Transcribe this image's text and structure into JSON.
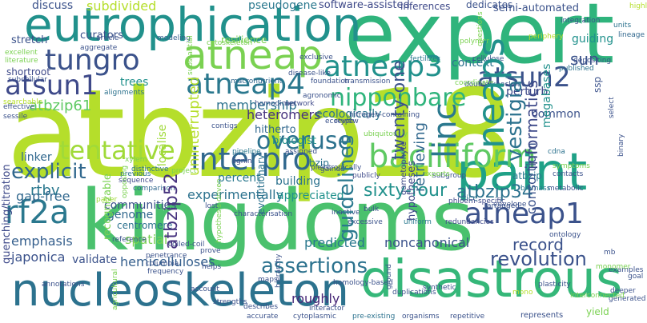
{
  "title": "",
  "words": [
    {
      "text": "atbzip18",
      "color": "#b5de2b"
    },
    {
      "text": "kingdoms",
      "color": "#4ac16d"
    },
    {
      "text": "expert",
      "color": "#2fb47c"
    },
    {
      "text": "eutrophication",
      "color": "#21918c"
    },
    {
      "text": "paint",
      "color": "#1fa187"
    },
    {
      "text": "disastrous",
      "color": "#35b779"
    },
    {
      "text": "nucleoskeleton",
      "color": "#2c728e"
    },
    {
      "text": "atneap",
      "color": "#7ad151"
    },
    {
      "text": "atneap3",
      "color": "#21918c"
    },
    {
      "text": "atneap4",
      "color": "#2a788e"
    },
    {
      "text": "atneap1",
      "color": "#3b528b"
    },
    {
      "text": "tungro",
      "color": "#3b528b"
    },
    {
      "text": "atsun1",
      "color": "#3e4989"
    },
    {
      "text": "atsun2",
      "color": "#3b528b"
    },
    {
      "text": "bacilliform",
      "color": "#5ec962"
    },
    {
      "text": "interpro",
      "color": "#31688e"
    },
    {
      "text": "tentative",
      "color": "#a0da39"
    },
    {
      "text": "overuse",
      "color": "#2c728e"
    },
    {
      "text": "rf2a",
      "color": "#2a788e"
    },
    {
      "text": "neaps",
      "color": "#21918c"
    },
    {
      "text": "linc",
      "color": "#2a788e"
    },
    {
      "text": "nipponbare",
      "color": "#2fb47c"
    },
    {
      "text": "vestigial",
      "color": "#2c728e"
    },
    {
      "text": "revolution",
      "color": "#3b528b"
    },
    {
      "text": "explicit",
      "color": "#31688e"
    },
    {
      "text": "assertions",
      "color": "#2c728e"
    },
    {
      "text": "sixty-four",
      "color": "#21918c"
    },
    {
      "text": "atbzip34",
      "color": "#2c728e"
    },
    {
      "text": "atbzip61",
      "color": "#5ec962"
    },
    {
      "text": "atbzip52",
      "color": "#46327e"
    },
    {
      "text": "atbzip",
      "color": "#2a788e"
    },
    {
      "text": "guidelines",
      "color": "#2a788e"
    },
    {
      "text": "twenty-one",
      "color": "#3b528b"
    },
    {
      "text": "uninterrupted",
      "color": "#b5de2b"
    },
    {
      "text": "membership",
      "color": "#2c728e"
    },
    {
      "text": "heteromers",
      "color": "#46327e"
    },
    {
      "text": "ecologically",
      "color": "#2c728e"
    },
    {
      "text": "retrieving",
      "color": "#31688e"
    },
    {
      "text": "informatics",
      "color": "#3e4989"
    },
    {
      "text": "megabases",
      "color": "#21918c"
    },
    {
      "text": "consortium",
      "color": "#3b528b"
    },
    {
      "text": "hemicelluloses",
      "color": "#355f8d"
    },
    {
      "text": "predicted",
      "color": "#2a788e"
    },
    {
      "text": "noncanonical",
      "color": "#3b528b"
    },
    {
      "text": "roughly",
      "color": "#482878"
    },
    {
      "text": "experimentally",
      "color": "#2c728e"
    },
    {
      "text": "appreciated",
      "color": "#21918c"
    },
    {
      "text": "record",
      "color": "#3b528b"
    },
    {
      "text": "percent",
      "color": "#2a788e"
    },
    {
      "text": "building",
      "color": "#2c728e"
    },
    {
      "text": "rtbv",
      "color": "#2a788e"
    },
    {
      "text": "gap-free",
      "color": "#31688e"
    },
    {
      "text": "linker",
      "color": "#31688e"
    },
    {
      "text": "japonica",
      "color": "#3b528b"
    },
    {
      "text": "emphasis",
      "color": "#355f8d"
    },
    {
      "text": "validate",
      "color": "#3b528b"
    },
    {
      "text": "genome",
      "color": "#31688e"
    },
    {
      "text": "centromere",
      "color": "#2c728e"
    },
    {
      "text": "communities",
      "color": "#3b528b"
    },
    {
      "text": "spatial",
      "color": "#7ad151"
    },
    {
      "text": "sun",
      "color": "#3b528b"
    },
    {
      "text": "context",
      "color": "#2c728e"
    },
    {
      "text": "perturb",
      "color": "#3e4989"
    },
    {
      "text": "common",
      "color": "#3b528b"
    },
    {
      "text": "guiding",
      "color": "#21918c"
    },
    {
      "text": "subdivided",
      "color": "#b5de2b"
    },
    {
      "text": "pseudogene",
      "color": "#2a788e"
    },
    {
      "text": "software-assisted",
      "color": "#3e4989"
    },
    {
      "text": "semi-automated",
      "color": "#3b528b"
    },
    {
      "text": "inferences",
      "color": "#3e4989"
    },
    {
      "text": "dedicates",
      "color": "#3b528b"
    },
    {
      "text": "discuss",
      "color": "#3b528b"
    },
    {
      "text": "curators",
      "color": "#3b528b"
    },
    {
      "text": "stretch",
      "color": "#3b528b"
    },
    {
      "text": "shortroot",
      "color": "#3e4989"
    },
    {
      "text": "trees",
      "color": "#21918c"
    },
    {
      "text": "resilience",
      "color": "#7ad151"
    },
    {
      "text": "localise",
      "color": "#a0da39"
    },
    {
      "text": "hitherto",
      "color": "#31688e"
    },
    {
      "text": "biologist",
      "color": "#21918c"
    },
    {
      "text": "evolutionary",
      "color": "#2c728e"
    },
    {
      "text": "bzip",
      "color": "#2c728e"
    },
    {
      "text": "hypotheses",
      "color": "#3e4989"
    },
    {
      "text": "quenching/titration",
      "color": "#3e4989"
    },
    {
      "text": "recognizable",
      "color": "#7ad151"
    },
    {
      "text": "modeling",
      "color": "#355f8d"
    },
    {
      "text": "macronutrient",
      "color": "#31688e"
    },
    {
      "text": "exclusive",
      "color": "#3b528b"
    },
    {
      "text": "foundation",
      "color": "#3b528b"
    },
    {
      "text": "transmission",
      "color": "#3b528b"
    },
    {
      "text": "fertilizer",
      "color": "#2a788e"
    },
    {
      "text": "cellulose",
      "color": "#3b528b"
    },
    {
      "text": "integration",
      "color": "#3b528b"
    },
    {
      "text": "published",
      "color": "#2c728e"
    },
    {
      "text": "depositing",
      "color": "#3b528b"
    },
    {
      "text": "lineage",
      "color": "#31688e"
    },
    {
      "text": "units",
      "color": "#2c728e"
    },
    {
      "text": "ssp",
      "color": "#3b528b"
    },
    {
      "text": "alignments",
      "color": "#2c728e"
    },
    {
      "text": "network",
      "color": "#3e4989"
    },
    {
      "text": "contigs",
      "color": "#3b528b"
    },
    {
      "text": "pipeline",
      "color": "#2a788e"
    },
    {
      "text": "lignin",
      "color": "#3e4989"
    },
    {
      "text": "sequence",
      "color": "#3e4989"
    },
    {
      "text": "previous",
      "color": "#2c728e"
    },
    {
      "text": "distinctive",
      "color": "#2c728e"
    },
    {
      "text": "comparison",
      "color": "#31688e"
    },
    {
      "text": "assigned",
      "color": "#3b528b"
    },
    {
      "text": "gained",
      "color": "#3b528b"
    },
    {
      "text": "review",
      "color": "#3b528b"
    },
    {
      "text": "publicly",
      "color": "#3e4989"
    },
    {
      "text": "gametophyte",
      "color": "#3e4989"
    },
    {
      "text": "subgroup",
      "color": "#3b528b"
    },
    {
      "text": "envelope",
      "color": "#3b528b"
    },
    {
      "text": "rice",
      "color": "#2c728e"
    },
    {
      "text": "arranged",
      "color": "#3b528b"
    },
    {
      "text": "metabolic",
      "color": "#3b528b"
    },
    {
      "text": "biomass",
      "color": "#2a788e"
    },
    {
      "text": "phloem-specific",
      "color": "#3e4989"
    },
    {
      "text": "characterisation",
      "color": "#3b528b"
    },
    {
      "text": "lost",
      "color": "#3b528b"
    },
    {
      "text": "inactive",
      "color": "#3b528b"
    },
    {
      "text": "bulk",
      "color": "#3b528b"
    },
    {
      "text": "excessive",
      "color": "#3b528b"
    },
    {
      "text": "uniform",
      "color": "#2a788e"
    },
    {
      "text": "redundancies",
      "color": "#3e4989"
    },
    {
      "text": "ontology",
      "color": "#3b528b"
    },
    {
      "text": "reference",
      "color": "#3b528b"
    },
    {
      "text": "coiled-coil",
      "color": "#3b528b"
    },
    {
      "text": "penetrance",
      "color": "#3b528b"
    },
    {
      "text": "columbia",
      "color": "#3b528b"
    },
    {
      "text": "frequency",
      "color": "#3b528b"
    },
    {
      "text": "prove",
      "color": "#3b528b"
    },
    {
      "text": "helps",
      "color": "#3b528b"
    },
    {
      "text": "account",
      "color": "#3b528b"
    },
    {
      "text": "annotations",
      "color": "#3b528b"
    },
    {
      "text": "maps",
      "color": "#3b528b"
    },
    {
      "text": "describes",
      "color": "#3b528b"
    },
    {
      "text": "accurate",
      "color": "#3b528b"
    },
    {
      "text": "interactor",
      "color": "#3b528b"
    },
    {
      "text": "cytoplasmic",
      "color": "#3b528b"
    },
    {
      "text": "pre-existing",
      "color": "#2c728e"
    },
    {
      "text": "organisms",
      "color": "#3b528b"
    },
    {
      "text": "repetitive",
      "color": "#3b528b"
    },
    {
      "text": "represents",
      "color": "#3b528b"
    },
    {
      "text": "yield",
      "color": "#7ad151"
    },
    {
      "text": "generated",
      "color": "#3b528b"
    },
    {
      "text": "deeper",
      "color": "#3b528b"
    },
    {
      "text": "goal",
      "color": "#3b528b"
    },
    {
      "text": "examples",
      "color": "#3b528b"
    },
    {
      "text": "plasticity",
      "color": "#3b528b"
    },
    {
      "text": "synthetic",
      "color": "#3b528b"
    },
    {
      "text": "duplications",
      "color": "#3b528b"
    },
    {
      "text": "ground",
      "color": "#3b528b"
    },
    {
      "text": "homology-based",
      "color": "#3b528b"
    },
    {
      "text": "hierarchy",
      "color": "#3b528b"
    },
    {
      "text": "strengths",
      "color": "#3b528b"
    },
    {
      "text": "contacts",
      "color": "#3b528b"
    },
    {
      "text": "symptoms",
      "color": "#7ad151"
    },
    {
      "text": "cdna",
      "color": "#2c728e"
    },
    {
      "text": "binary",
      "color": "#3b528b"
    },
    {
      "text": "select",
      "color": "#3b528b"
    },
    {
      "text": "highly",
      "color": "#b5de2b"
    },
    {
      "text": "sessile",
      "color": "#3b528b"
    },
    {
      "text": "effective",
      "color": "#3b528b"
    },
    {
      "text": "subcellular",
      "color": "#3b528b"
    },
    {
      "text": "excellent",
      "color": "#7ad151"
    },
    {
      "text": "literature",
      "color": "#7ad151"
    },
    {
      "text": "article",
      "color": "#3b528b"
    },
    {
      "text": "aggregate",
      "color": "#3b528b"
    },
    {
      "text": "disease-like",
      "color": "#3b528b"
    },
    {
      "text": "agronomic",
      "color": "#3b528b"
    },
    {
      "text": "homodimer",
      "color": "#3b528b"
    },
    {
      "text": "ecotype",
      "color": "#3b528b"
    },
    {
      "text": "nitrogen-containing",
      "color": "#3b528b"
    },
    {
      "text": "pleiotropically",
      "color": "#3b528b"
    },
    {
      "text": "substantial",
      "color": "#7ad151"
    },
    {
      "text": "xylem",
      "color": "#7ad151"
    },
    {
      "text": "paper",
      "color": "#a0da39"
    },
    {
      "text": "opposing",
      "color": "#7ad151"
    },
    {
      "text": "searchable",
      "color": "#b5de2b"
    },
    {
      "text": "project",
      "color": "#7ad151"
    },
    {
      "text": "agricultural",
      "color": "#7ad151"
    },
    {
      "text": "cytoskeleton",
      "color": "#7ad151"
    },
    {
      "text": "polymer",
      "color": "#7ad151"
    },
    {
      "text": "periphery",
      "color": "#b5de2b"
    },
    {
      "text": "questions",
      "color": "#7ad151"
    },
    {
      "text": "double-knockout",
      "color": "#3b528b"
    },
    {
      "text": "coordinate",
      "color": "#7ad151"
    },
    {
      "text": "ubiquitously",
      "color": "#7ad151"
    },
    {
      "text": "exports",
      "color": "#7ad151"
    },
    {
      "text": "monomer",
      "color": "#7ad151"
    },
    {
      "text": "interconnected",
      "color": "#7ad151"
    },
    {
      "text": "hypothesis-driven",
      "color": "#7ad151"
    },
    {
      "text": "mono",
      "color": "#b5de2b"
    },
    {
      "text": "mb",
      "color": "#3b528b"
    }
  ]
}
